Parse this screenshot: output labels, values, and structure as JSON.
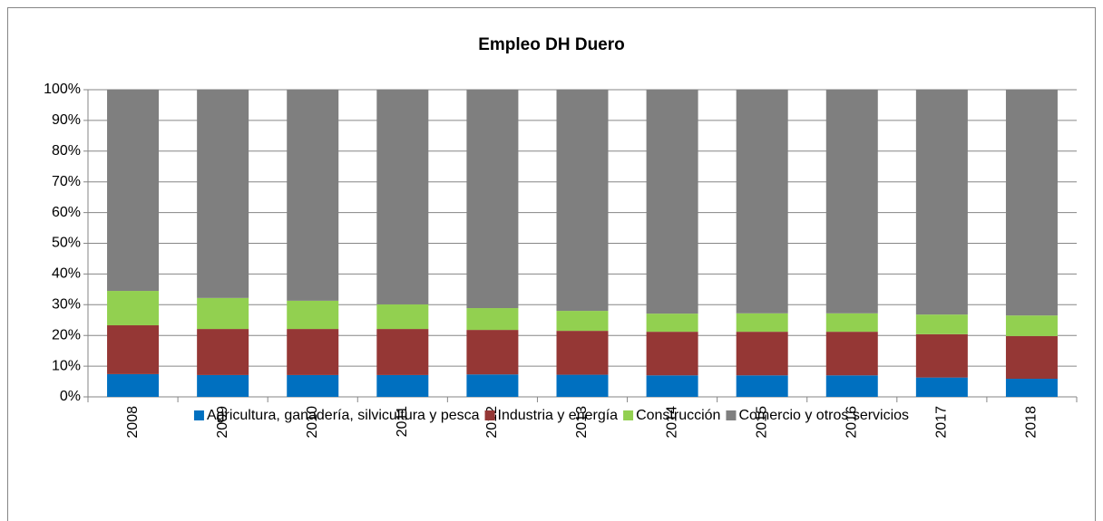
{
  "chart_data": {
    "type": "bar",
    "stacked": true,
    "title": "Empleo DH Duero",
    "categories": [
      "2008",
      "2009",
      "2010",
      "2011",
      "2012",
      "2013",
      "2014",
      "2015",
      "2016",
      "2017",
      "2018"
    ],
    "series": [
      {
        "name": "Agricultura, ganadería, silvicultura y pesca",
        "color": "#0070c0",
        "values": [
          7.4,
          7.1,
          7.1,
          7.1,
          7.3,
          7.2,
          7.0,
          7.0,
          7.0,
          6.3,
          5.9
        ]
      },
      {
        "name": "Industria y energía",
        "color": "#953735",
        "values": [
          15.9,
          15.0,
          15.0,
          15.0,
          14.5,
          14.3,
          14.2,
          14.2,
          14.2,
          14.1,
          13.9
        ]
      },
      {
        "name": "Construcción",
        "color": "#92d050",
        "values": [
          11.2,
          10.1,
          9.2,
          8.0,
          7.1,
          6.5,
          5.9,
          6.0,
          6.0,
          6.4,
          6.7
        ]
      },
      {
        "name": "Comercio y otros servicios",
        "color": "#7f7f7f",
        "values": [
          65.5,
          67.8,
          68.7,
          69.9,
          71.1,
          72.0,
          72.9,
          72.8,
          72.8,
          73.2,
          73.5
        ]
      }
    ],
    "ylim": [
      0,
      100
    ],
    "yticks": [
      {
        "value": 0,
        "label": "0%"
      },
      {
        "value": 10,
        "label": "10%"
      },
      {
        "value": 20,
        "label": "20%"
      },
      {
        "value": 30,
        "label": "30%"
      },
      {
        "value": 40,
        "label": "40%"
      },
      {
        "value": 50,
        "label": "50%"
      },
      {
        "value": 60,
        "label": "60%"
      },
      {
        "value": 70,
        "label": "70%"
      },
      {
        "value": 80,
        "label": "80%"
      },
      {
        "value": 90,
        "label": "90%"
      },
      {
        "value": 100,
        "label": "100%"
      }
    ],
    "grid": true,
    "legend": "bottom"
  }
}
